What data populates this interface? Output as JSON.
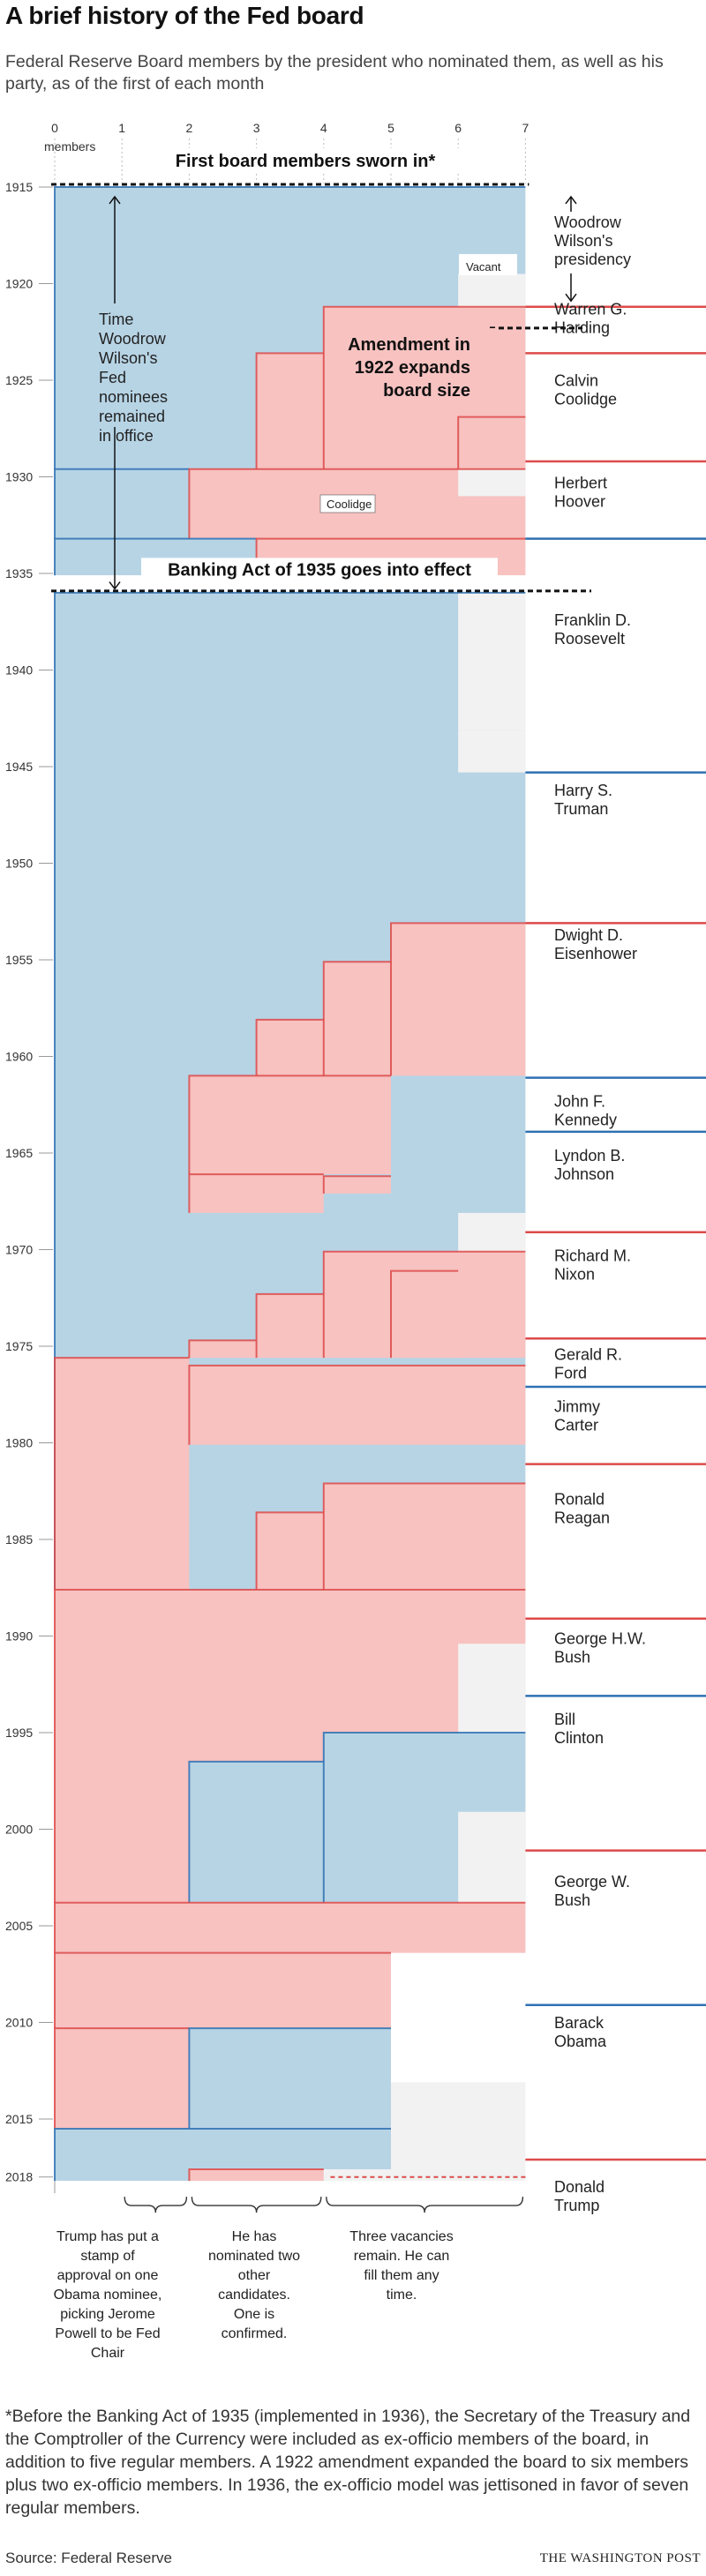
{
  "title": "A brief history of the Fed board",
  "subtitle": "Federal Reserve Board members by the president who nominated them, as well as his party, as of the first of each month",
  "footnote": "*Before the Banking Act of 1935 (implemented in 1936), the Secretary of the Treasury and the Comptroller of the Currency were included as ex-officio members of the board, in addition to five regular members. A 1922 amendment expanded the board to six members plus two ex-officio members. In 1936, the ex-officio model was jettisoned in favor of seven regular members.",
  "source": "Source: Federal Reserve",
  "publisher": "THE WASHINGTON POST",
  "colors": {
    "democrat_fill": "#b7d4e5",
    "republican_fill": "#f7c2c0",
    "vacant_fill": "#f2f2f2",
    "democrat_line": "#2f71b3",
    "republican_line": "#dd4a4a"
  },
  "chart_data": {
    "type": "area",
    "title": "A brief history of the Fed board",
    "xlabel": "members",
    "x_ticks": [
      "0",
      "1",
      "2",
      "3",
      "4",
      "5",
      "6",
      "7"
    ],
    "xlim": [
      0,
      7
    ],
    "ylim": [
      1915,
      2018.2
    ],
    "y_ticks": [
      "1915",
      "1920",
      "1925",
      "1930",
      "1935",
      "1940",
      "1945",
      "1950",
      "1955",
      "1960",
      "1965",
      "1970",
      "1975",
      "1980",
      "1985",
      "1990",
      "1995",
      "2000",
      "2005",
      "2010",
      "2015",
      "2018"
    ],
    "presidents": [
      {
        "name": "Woodrow Wilson's presidency",
        "party": "D",
        "start": 1915.0,
        "show_label": false
      },
      {
        "name": "Warren G. Harding",
        "party": "R",
        "start": 1921.2
      },
      {
        "name": "Calvin Coolidge",
        "party": "R",
        "start": 1923.6
      },
      {
        "name": "Herbert Hoover",
        "party": "R",
        "start": 1929.2
      },
      {
        "name": "Franklin D. Roosevelt",
        "party": "D",
        "start": 1933.2
      },
      {
        "name": "Harry S. Truman",
        "party": "D",
        "start": 1945.3
      },
      {
        "name": "Dwight D. Eisenhower",
        "party": "R",
        "start": 1953.1
      },
      {
        "name": "John F. Kennedy",
        "party": "D",
        "start": 1961.1
      },
      {
        "name": "Lyndon B. Johnson",
        "party": "D",
        "start": 1963.9
      },
      {
        "name": "Richard M. Nixon",
        "party": "R",
        "start": 1969.1
      },
      {
        "name": "Gerald R. Ford",
        "party": "R",
        "start": 1974.6
      },
      {
        "name": "Jimmy Carter",
        "party": "D",
        "start": 1977.1
      },
      {
        "name": "Ronald Reagan",
        "party": "R",
        "start": 1981.1
      },
      {
        "name": "George H.W. Bush",
        "party": "R",
        "start": 1989.1
      },
      {
        "name": "Bill Clinton",
        "party": "D",
        "start": 1993.1
      },
      {
        "name": "George W. Bush",
        "party": "R",
        "start": 2001.1
      },
      {
        "name": "Barack Obama",
        "party": "D",
        "start": 2009.1
      },
      {
        "name": "Donald Trump",
        "party": "R",
        "start": 2017.1
      }
    ],
    "member_segments": [
      {
        "start": 1915.0,
        "end": 1929.6,
        "from": 0,
        "to": 7,
        "party": "D"
      },
      {
        "start": 1921.2,
        "end": 1929.6,
        "from": 4,
        "to": 7,
        "party": "R"
      },
      {
        "start": 1923.6,
        "end": 1929.6,
        "from": 3,
        "to": 4,
        "party": "R"
      },
      {
        "start": 1926.9,
        "end": 1929.6,
        "from": 6,
        "to": 7,
        "party": "R"
      },
      {
        "start": 1929.6,
        "end": 1933.2,
        "from": 0,
        "to": 2,
        "party": "D"
      },
      {
        "start": 1929.6,
        "end": 1933.2,
        "from": 2,
        "to": 7,
        "party": "R"
      },
      {
        "start": 1933.2,
        "end": 1935.1,
        "from": 0,
        "to": 3,
        "party": "D"
      },
      {
        "start": 1933.2,
        "end": 1935.1,
        "from": 3,
        "to": 7,
        "party": "R"
      },
      {
        "start": 1936.0,
        "end": 1987.6,
        "from": 0,
        "to": 7,
        "party": "D"
      },
      {
        "start": 1953.1,
        "end": 1961.0,
        "from": 5,
        "to": 7,
        "party": "R"
      },
      {
        "start": 1955.1,
        "end": 1961.0,
        "from": 4,
        "to": 5,
        "party": "R"
      },
      {
        "start": 1958.1,
        "end": 1961.0,
        "from": 3,
        "to": 4,
        "party": "R"
      },
      {
        "start": 1961.0,
        "end": 1966.1,
        "from": 2,
        "to": 5,
        "party": "R"
      },
      {
        "start": 1966.1,
        "end": 1968.1,
        "from": 2,
        "to": 4,
        "party": "R"
      },
      {
        "start": 1966.2,
        "end": 1967.1,
        "from": 4,
        "to": 5,
        "party": "R"
      },
      {
        "start": 1970.1,
        "end": 1975.6,
        "from": 4,
        "to": 7,
        "party": "R"
      },
      {
        "start": 1971.1,
        "end": 1975.6,
        "from": 5,
        "to": 6,
        "party": "R"
      },
      {
        "start": 1972.3,
        "end": 1975.6,
        "from": 3,
        "to": 4,
        "party": "R"
      },
      {
        "start": 1974.7,
        "end": 1975.6,
        "from": 2,
        "to": 3,
        "party": "R"
      },
      {
        "start": 1975.6,
        "end": 1987.6,
        "from": 0,
        "to": 2,
        "party": "R"
      },
      {
        "start": 1976.0,
        "end": 1980.1,
        "from": 2,
        "to": 7,
        "party": "R"
      },
      {
        "start": 1982.1,
        "end": 1987.6,
        "from": 4,
        "to": 7,
        "party": "R"
      },
      {
        "start": 1983.6,
        "end": 1987.6,
        "from": 3,
        "to": 4,
        "party": "R"
      },
      {
        "start": 1987.6,
        "end": 2003.8,
        "from": 0,
        "to": 7,
        "party": "R"
      },
      {
        "start": 1995.0,
        "end": 2003.8,
        "from": 4,
        "to": 7,
        "party": "D"
      },
      {
        "start": 1996.5,
        "end": 2003.8,
        "from": 2,
        "to": 4,
        "party": "D"
      },
      {
        "start": 2003.8,
        "end": 2006.4,
        "from": 0,
        "to": 7,
        "party": "R"
      },
      {
        "start": 2006.4,
        "end": 2010.3,
        "from": 0,
        "to": 5,
        "party": "R"
      },
      {
        "start": 2010.3,
        "end": 2015.5,
        "from": 0,
        "to": 2,
        "party": "R"
      },
      {
        "start": 2010.3,
        "end": 2015.5,
        "from": 2,
        "to": 5,
        "party": "D"
      },
      {
        "start": 2015.5,
        "end": 2018.2,
        "from": 0,
        "to": 5,
        "party": "D"
      },
      {
        "start": 2017.6,
        "end": 2018.2,
        "from": 2,
        "to": 4,
        "party": "R"
      }
    ],
    "vacancies": [
      {
        "start": 1919.5,
        "end": 1921.2,
        "from": 6,
        "to": 7
      },
      {
        "start": 1929.6,
        "end": 1931.0,
        "from": 6,
        "to": 7
      },
      {
        "start": 1936.0,
        "end": 1943.1,
        "from": 6,
        "to": 7
      },
      {
        "start": 1943.1,
        "end": 1945.3,
        "from": 6,
        "to": 7
      },
      {
        "start": 1968.1,
        "end": 1970.1,
        "from": 6,
        "to": 7
      },
      {
        "start": 1990.4,
        "end": 1995.0,
        "from": 6,
        "to": 7
      },
      {
        "start": 1999.1,
        "end": 2003.8,
        "from": 6,
        "to": 7
      },
      {
        "start": 2013.1,
        "end": 2018.2,
        "from": 5,
        "to": 7
      },
      {
        "start": 2017.6,
        "end": 2018.2,
        "from": 4,
        "to": 5
      }
    ],
    "annotations": [
      {
        "id": "first-board",
        "text": "First board members sworn in*",
        "year": 1915.0
      },
      {
        "id": "banking-act",
        "text": "Banking Act of 1935 goes into effect",
        "year": 1936.0
      },
      {
        "id": "wilson-tenure",
        "text": "Time Woodrow Wilson's Fed nominees remained in office"
      },
      {
        "id": "wilson-presidency",
        "text": "Woodrow Wilson's presidency"
      },
      {
        "id": "amendment",
        "text": "Amendment in 1922 expands board size"
      },
      {
        "id": "vacant",
        "text": "Vacant"
      },
      {
        "id": "coolidge",
        "text": "Coolidge"
      }
    ],
    "bottom_notes": [
      {
        "text": "Trump has put a stamp of approval on one Obama nominee, picking Jerome Powell to be Fed Chair",
        "from": 1,
        "to": 2
      },
      {
        "text": "He has nominated two other candidates. One is confirmed.",
        "from": 2,
        "to": 4
      },
      {
        "text": "Three vacancies remain. He can fill them any time.",
        "from": 4,
        "to": 7
      }
    ]
  }
}
